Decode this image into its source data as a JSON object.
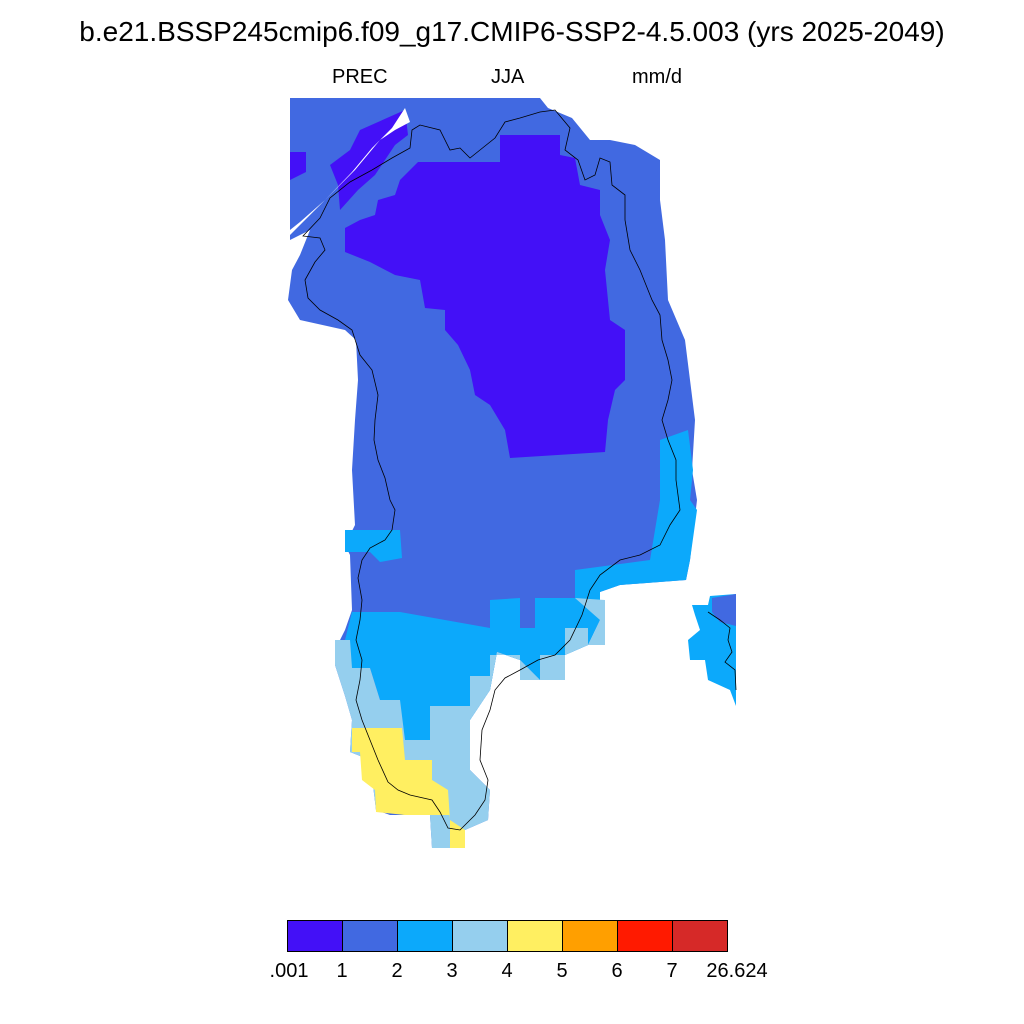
{
  "title": "b.e21.BSSP245cmip6.f09_g17.CMIP6-SSP2-4.5.003 (yrs 2025-2049)",
  "subtitle": {
    "variable": "PREC",
    "season": "JJA",
    "units": "mm/d"
  },
  "colorbar": {
    "colors": [
      "#4310f7",
      "#4169e1",
      "#0ca9fb",
      "#95cfee",
      "#ffef61",
      "#ff9f00",
      "#ff1a00",
      "#d62928"
    ],
    "labels": [
      ".001",
      "1",
      "2",
      "3",
      "4",
      "5",
      "6",
      "7",
      "26.624"
    ]
  },
  "map": {
    "region": "Greenland",
    "categories": [
      "<1",
      "1-2",
      "2-3",
      "3-4",
      "4-5"
    ]
  }
}
